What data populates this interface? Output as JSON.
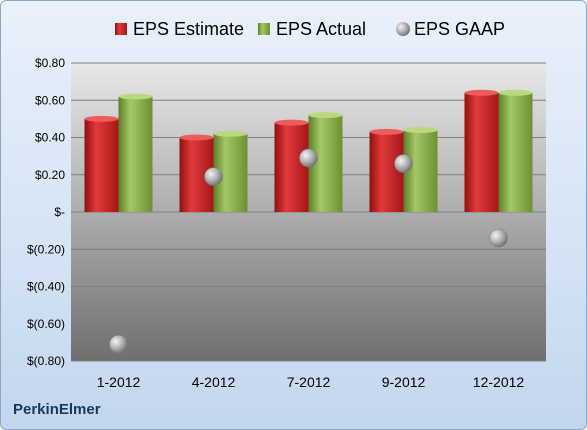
{
  "company": "PerkinElmer",
  "chart_data": {
    "type": "bar",
    "categories": [
      "1-2012",
      "4-2012",
      "7-2012",
      "9-2012",
      "12-2012"
    ],
    "series": [
      {
        "name": "EPS Estimate",
        "kind": "bar",
        "color": "#cc1f1f",
        "values": [
          0.5,
          0.4,
          0.48,
          0.43,
          0.64
        ]
      },
      {
        "name": "EPS Actual",
        "kind": "bar",
        "color": "#8db04a",
        "values": [
          0.62,
          0.42,
          0.52,
          0.44,
          0.64
        ]
      },
      {
        "name": "EPS GAAP",
        "kind": "marker",
        "color": "#a6a6a6",
        "values": [
          -0.71,
          0.19,
          0.29,
          0.26,
          -0.14
        ]
      }
    ],
    "ylim": [
      -0.8,
      0.8
    ],
    "yticks": [
      {
        "value": 0.8,
        "label": "$0.80"
      },
      {
        "value": 0.6,
        "label": "$0.60"
      },
      {
        "value": 0.4,
        "label": "$0.40"
      },
      {
        "value": 0.2,
        "label": "$0.20"
      },
      {
        "value": 0,
        "label": "$-"
      },
      {
        "value": -0.2,
        "label": "$(0.20)"
      },
      {
        "value": -0.4,
        "label": "$(0.40)"
      },
      {
        "value": -0.6,
        "label": "$(0.60)"
      },
      {
        "value": -0.8,
        "label": "$(0.80)"
      }
    ],
    "grid": true,
    "legend_position": "top"
  }
}
